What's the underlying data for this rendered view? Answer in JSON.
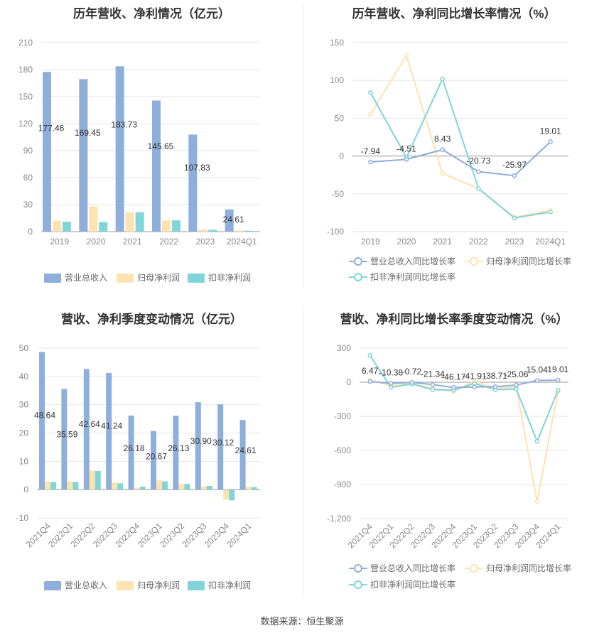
{
  "source": "数据来源：恒生聚源",
  "colors": {
    "revenue": "#8eaedb",
    "net_profit": "#fde3b0",
    "deducted_profit": "#7fd5d8",
    "revenue_growth": "#8eaedb",
    "net_profit_growth": "#fde3b0",
    "deducted_growth": "#7fd5d8"
  },
  "chart_data": [
    {
      "id": "annual_bar",
      "type": "bar",
      "title": "历年营收、净利情况（亿元）",
      "categories": [
        "2019",
        "2020",
        "2021",
        "2022",
        "2023",
        "2024Q1"
      ],
      "series": [
        {
          "name": "营业总收入",
          "values": [
            177.46,
            169.45,
            183.73,
            145.65,
            107.83,
            24.61
          ],
          "labels": [
            "177.46",
            "169.45",
            "183.73",
            "145.65",
            "107.83",
            "24.61"
          ]
        },
        {
          "name": "归母净利润",
          "values": [
            12.0,
            28.0,
            21.5,
            12.5,
            2.5,
            1.2
          ]
        },
        {
          "name": "扣非净利润",
          "values": [
            11.0,
            10.5,
            21.5,
            12.5,
            2.0,
            1.0
          ]
        }
      ],
      "yticks": [
        "0",
        "30",
        "60",
        "90",
        "120",
        "150",
        "180",
        "210"
      ],
      "ylim": [
        0,
        210
      ],
      "legend": "bottom"
    },
    {
      "id": "annual_growth",
      "type": "line",
      "title": "历年营收、净利同比增长率情况（%）",
      "categories": [
        "2019",
        "2020",
        "2021",
        "2022",
        "2023",
        "2024Q1"
      ],
      "series": [
        {
          "name": "营业总收入同比增长率",
          "values": [
            -7.94,
            -4.51,
            8.43,
            -20.73,
            -25.97,
            19.01
          ],
          "labels": [
            "-7.94",
            "-4.51",
            "8.43",
            "-20.73",
            "-25.97",
            "19.01"
          ]
        },
        {
          "name": "归母净利润同比增长率",
          "values": [
            55,
            133,
            -23,
            -43,
            -81,
            -72
          ]
        },
        {
          "name": "扣非净利润同比增长率",
          "values": [
            84,
            -2,
            102,
            -43,
            -82,
            -74
          ]
        }
      ],
      "yticks": [
        "-100",
        "-50",
        "0",
        "50",
        "100",
        "150"
      ],
      "ylim": [
        -100,
        150
      ],
      "legend": "bottom"
    },
    {
      "id": "quarterly_bar",
      "type": "bar",
      "title": "营收、净利季度变动情况（亿元）",
      "categories": [
        "2021Q4",
        "2022Q1",
        "2022Q2",
        "2022Q3",
        "2022Q4",
        "2023Q1",
        "2023Q2",
        "2023Q3",
        "2023Q4",
        "2024Q1"
      ],
      "series": [
        {
          "name": "营业总收入",
          "values": [
            48.64,
            35.59,
            42.64,
            41.24,
            26.18,
            20.67,
            26.13,
            30.9,
            30.12,
            24.61
          ],
          "labels": [
            "48.64",
            "35.59",
            "42.64",
            "41.24",
            "26.18",
            "20.67",
            "26.13",
            "30.90",
            "30.12",
            "24.61"
          ]
        },
        {
          "name": "归母净利润",
          "values": [
            2.8,
            2.8,
            6.7,
            2.5,
            0.5,
            3.2,
            2.0,
            1.2,
            -3.5,
            1.0
          ]
        },
        {
          "name": "扣非净利润",
          "values": [
            2.7,
            2.7,
            6.6,
            2.2,
            1.0,
            2.9,
            2.0,
            1.3,
            -3.8,
            0.9
          ]
        }
      ],
      "yticks": [
        "-10",
        "0",
        "10",
        "20",
        "30",
        "40",
        "50"
      ],
      "ylim": [
        -10,
        50
      ],
      "legend": "bottom"
    },
    {
      "id": "quarterly_growth",
      "type": "line",
      "title": "营收、净利同比增长率季度变动情况（%）",
      "categories": [
        "2021Q4",
        "2022Q1",
        "2022Q2",
        "2022Q3",
        "2022Q4",
        "2023Q1",
        "2023Q2",
        "2023Q3",
        "2023Q4",
        "2024Q1"
      ],
      "series": [
        {
          "name": "营业总收入同比增长率",
          "values": [
            6.47,
            -10.38,
            -0.72,
            -21.34,
            -46.17,
            -41.91,
            -38.71,
            -25.06,
            15.04,
            19.01
          ],
          "labels": [
            "6.47",
            "-10.38",
            "-0.72",
            "-21.34",
            "-46.17",
            "-41.91",
            "-38.71",
            "-25.06",
            "15.04",
            "19.01"
          ]
        },
        {
          "name": "归母净利润同比增长率",
          "values": [
            20,
            -30,
            -10,
            -55,
            -80,
            10,
            -50,
            -45,
            -1050,
            -80
          ]
        },
        {
          "name": "扣非净利润同比增长率",
          "values": [
            235,
            -45,
            -15,
            -65,
            -70,
            -10,
            -65,
            -60,
            -520,
            -70
          ]
        }
      ],
      "yticks": [
        "-1,200",
        "-900",
        "-600",
        "-300",
        "0",
        "300"
      ],
      "ylim": [
        -1200,
        300
      ],
      "legend": "bottom"
    }
  ]
}
